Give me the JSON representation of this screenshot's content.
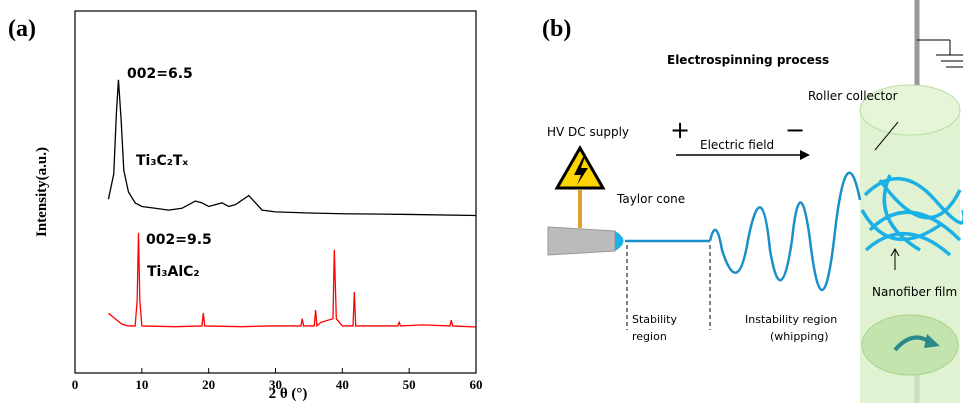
{
  "chart_data": {
    "type": "line",
    "panel_label": "(a)",
    "xlabel": "2 θ (°)",
    "ylabel": "Intensity(a.u.)",
    "xlim": [
      0,
      60
    ],
    "xticks": [
      0,
      10,
      20,
      30,
      40,
      50,
      60
    ],
    "ylim": [
      0,
      100
    ],
    "annotations": [
      "002=6.5",
      "Ti₃C₂Tₓ",
      "002=9.5",
      "Ti₃AlC₂"
    ],
    "series": [
      {
        "name": "Ti₃C₂Tₓ",
        "color": "#000000",
        "x": [
          5,
          5.8,
          6.2,
          6.5,
          6.9,
          7.3,
          8,
          9,
          10,
          12,
          14,
          16,
          18,
          19,
          20,
          22,
          23,
          24,
          26,
          27,
          28,
          30,
          35,
          40,
          50,
          60
        ],
        "values": [
          48,
          55,
          72,
          81,
          70,
          56,
          50,
          47,
          46,
          45.5,
          45,
          45.5,
          47.5,
          47,
          46,
          47,
          46,
          46.5,
          49,
          47,
          45,
          44.5,
          44.2,
          44,
          43.8,
          43.5
        ]
      },
      {
        "name": "Ti₃AlC₂",
        "color": "#ff0000",
        "x": [
          5,
          6,
          7,
          8,
          9,
          9.3,
          9.5,
          9.7,
          10,
          15,
          19,
          19.2,
          19.4,
          25,
          29,
          33.8,
          34,
          34.2,
          35.8,
          36,
          36.2,
          36.8,
          38.6,
          38.8,
          39.1,
          40,
          41.6,
          41.8,
          42,
          45,
          48.3,
          48.5,
          48.7,
          52,
          56.1,
          56.3,
          56.5,
          60
        ],
        "values": [
          16.5,
          15,
          13.5,
          13,
          13,
          20,
          38.7,
          20,
          13,
          12.8,
          13,
          16.6,
          13,
          12.8,
          13,
          13,
          15,
          13,
          13,
          17.4,
          13,
          14,
          15,
          34,
          15,
          13,
          13,
          22.4,
          13,
          13,
          13,
          14,
          13,
          13.3,
          13,
          14.6,
          13,
          12.7
        ]
      }
    ]
  },
  "diagram": {
    "panel_label": "(b)",
    "title": "Electrospinning process",
    "labels": {
      "supply": "HV DC supply",
      "plus": "+",
      "minus": "−",
      "field": "Electric field",
      "cone": "Taylor cone",
      "collector": "Roller collector",
      "film": "Nanofiber film",
      "stability": [
        "Stability",
        "region"
      ],
      "instability": [
        "Instability region",
        "(whipping)"
      ]
    }
  }
}
